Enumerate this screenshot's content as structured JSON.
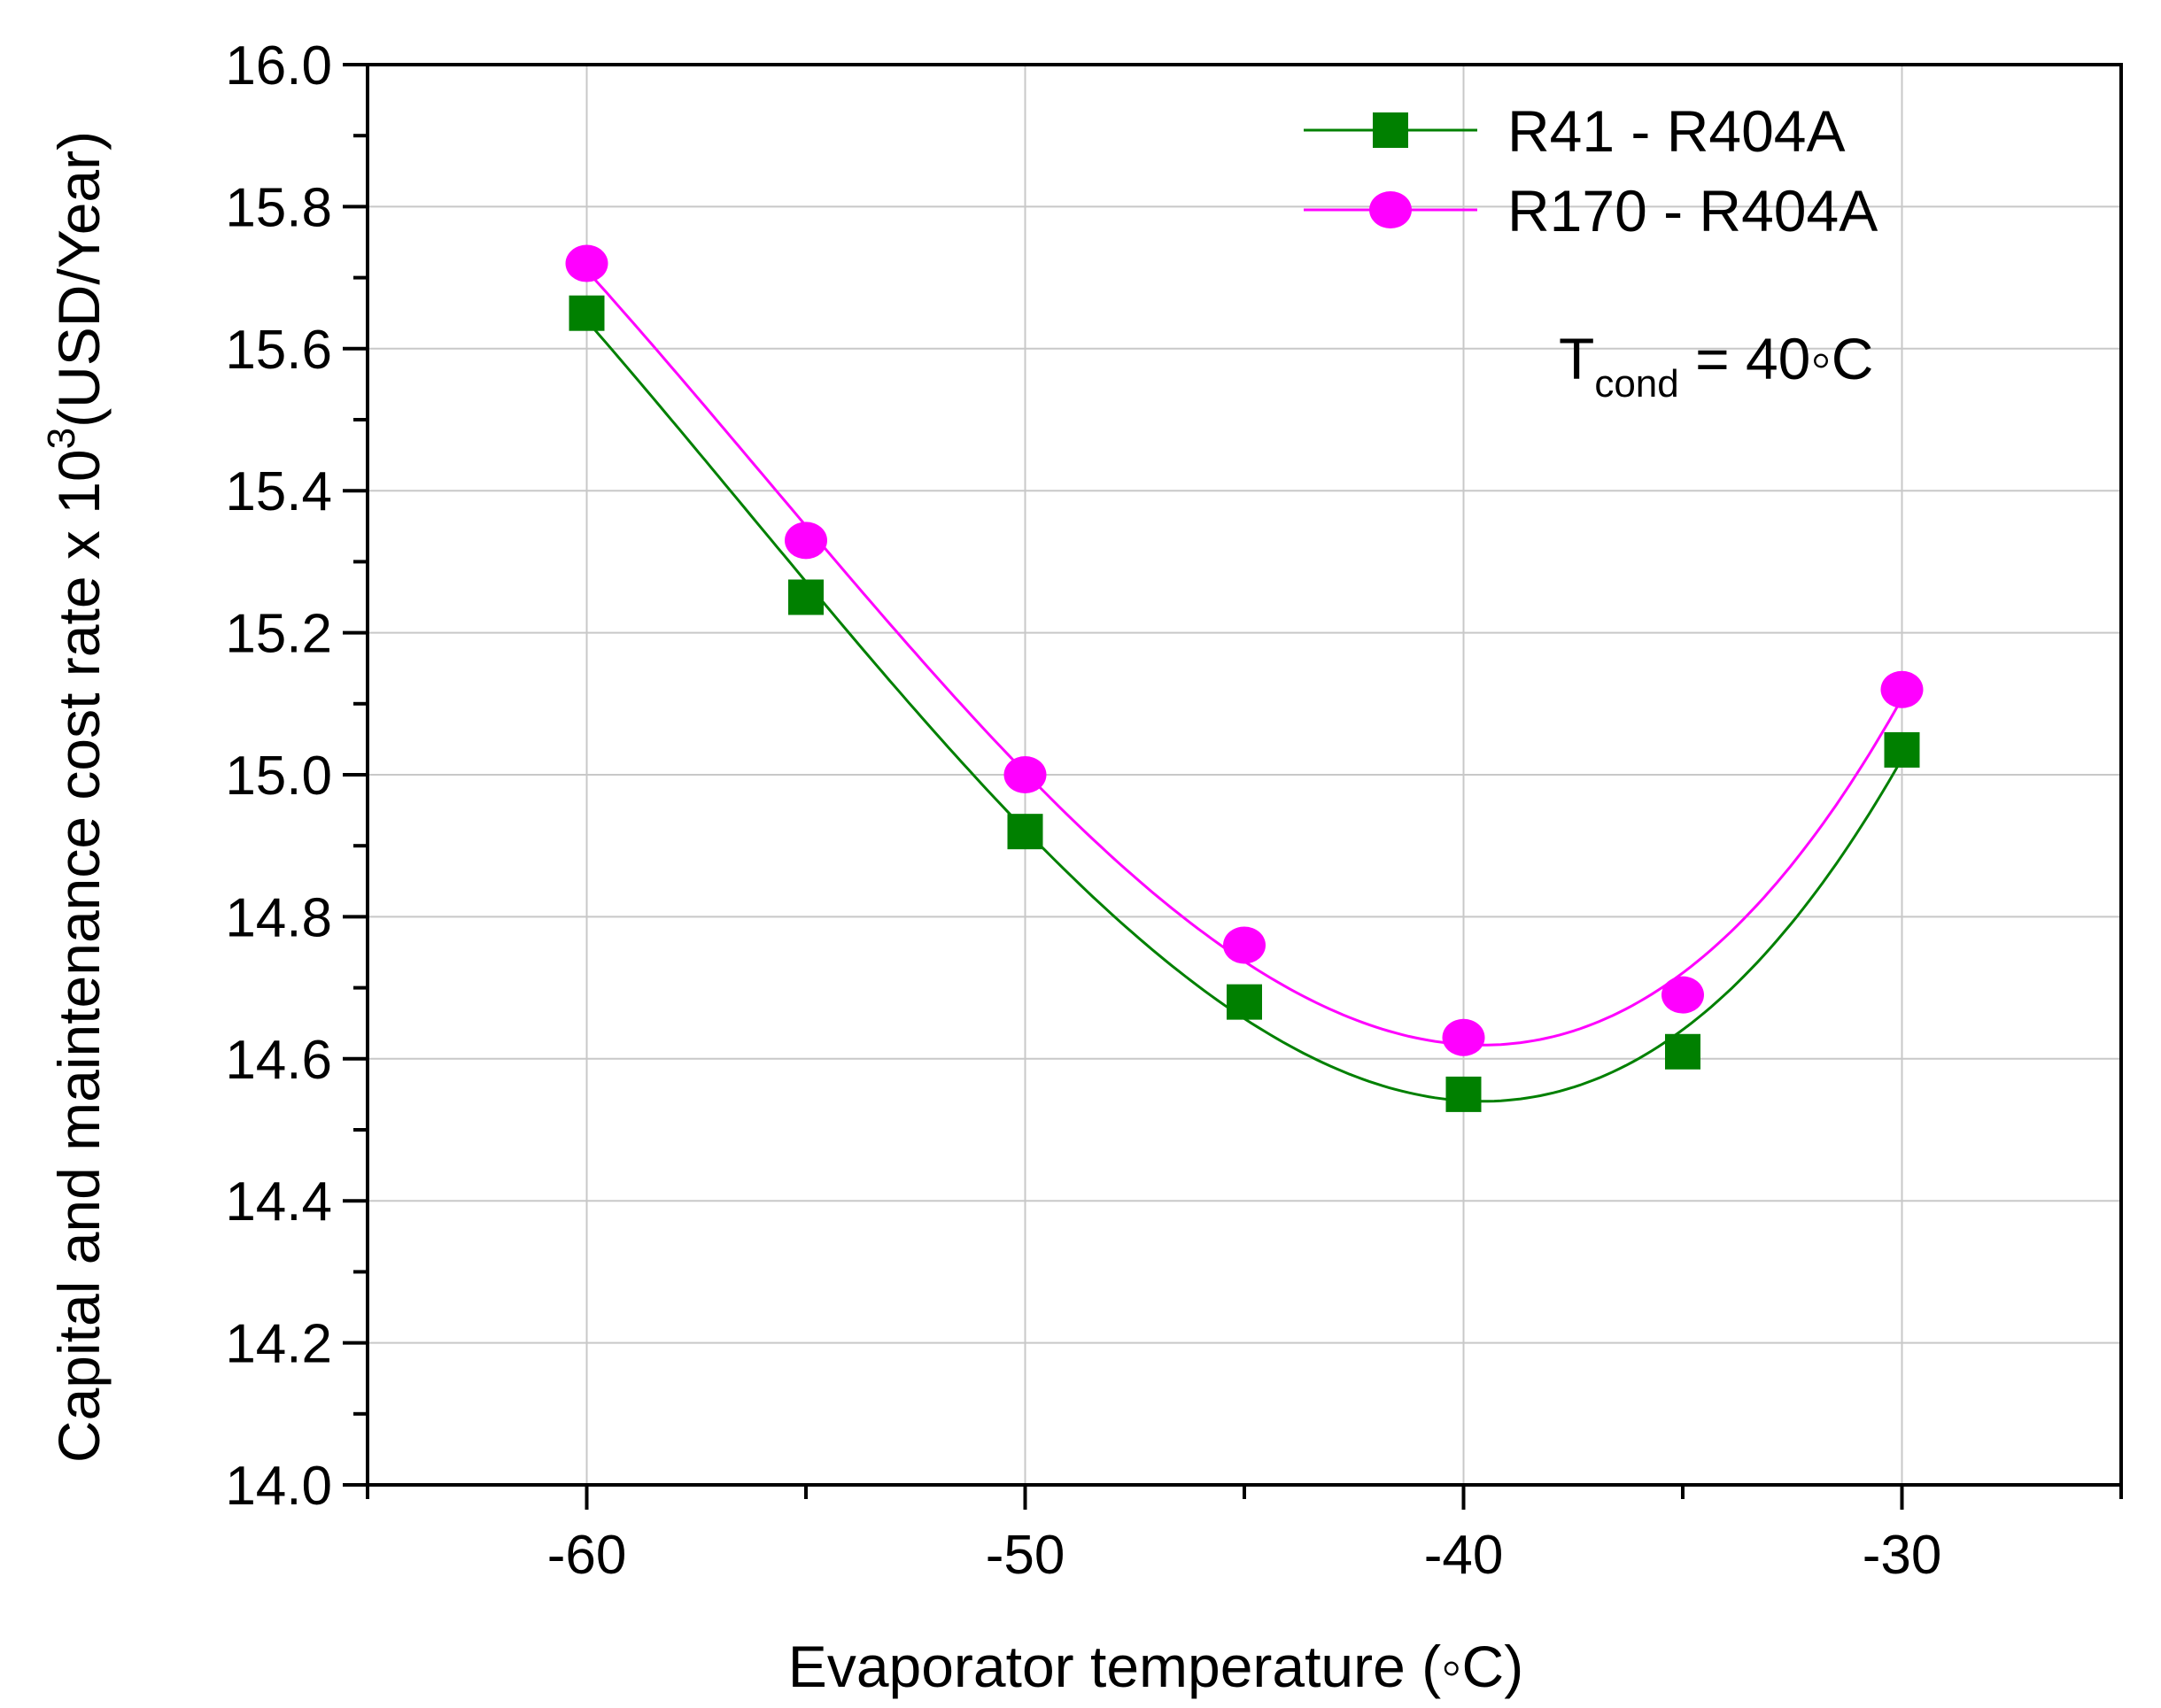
{
  "chart_data": {
    "type": "line",
    "x": [
      -60,
      -55,
      -50,
      -45,
      -40,
      -35,
      -30
    ],
    "xlim": [
      -65,
      -25
    ],
    "ylim": [
      14.0,
      16.0
    ],
    "x_ticks": [
      -60,
      -50,
      -40,
      -30
    ],
    "x_tick_labels": [
      "-60",
      "-50",
      "-40",
      "-30"
    ],
    "y_ticks": [
      14.0,
      14.2,
      14.4,
      14.6,
      14.8,
      15.0,
      15.2,
      15.4,
      15.6,
      15.8,
      16.0
    ],
    "y_tick_labels": [
      "14.0",
      "14.2",
      "14.4",
      "14.6",
      "14.8",
      "15.0",
      "15.2",
      "15.4",
      "15.6",
      "15.8",
      "16.0"
    ],
    "xlabel": "Evaporator temperature (◦C)",
    "ylabel": "Capital and maintenance cost rate x 10",
    "ylabel_superscript": "3",
    "ylabel_suffix": "(USD/Year)",
    "grid": true,
    "legend_position": "top-right",
    "series": [
      {
        "name": "R41 - R404A",
        "marker": "square",
        "color": "#008000",
        "values": [
          15.65,
          15.25,
          14.92,
          14.68,
          14.55,
          14.61,
          15.035
        ]
      },
      {
        "name": "R170 - R404A",
        "marker": "circle",
        "color": "#ff00ff",
        "values": [
          15.72,
          15.33,
          15.0,
          14.76,
          14.63,
          14.69,
          15.12
        ]
      }
    ],
    "annotation": {
      "main": "T",
      "subscript": "cond",
      "rest": " = 40◦C"
    }
  }
}
